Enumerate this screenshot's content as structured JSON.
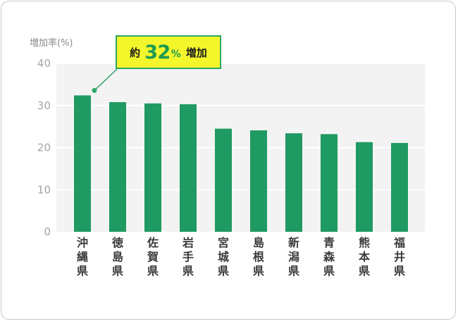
{
  "chart_data": {
    "type": "bar",
    "ylabel": "増加率(%)",
    "ylim": [
      0,
      40
    ],
    "yticks": [
      "0",
      "10",
      "20",
      "30",
      "40"
    ],
    "categories": [
      "沖縄県",
      "徳島県",
      "佐賀県",
      "岩手県",
      "宮城県",
      "島根県",
      "新潟県",
      "青森県",
      "熊本県",
      "福井県"
    ],
    "values": [
      32.4,
      30.8,
      30.5,
      30.3,
      24.5,
      24.1,
      23.4,
      23.2,
      21.3,
      21.1
    ],
    "grid": true,
    "colors": {
      "bar": "#1f9a62",
      "plot_background": "#f3f3f3",
      "gridline": "#ffffff",
      "callout_fill": "#f3f62a",
      "callout_border": "#2fa663"
    },
    "annotation": {
      "prefix": "約",
      "number": "32",
      "unit": "%",
      "suffix": "増加",
      "target_index": 0
    }
  }
}
